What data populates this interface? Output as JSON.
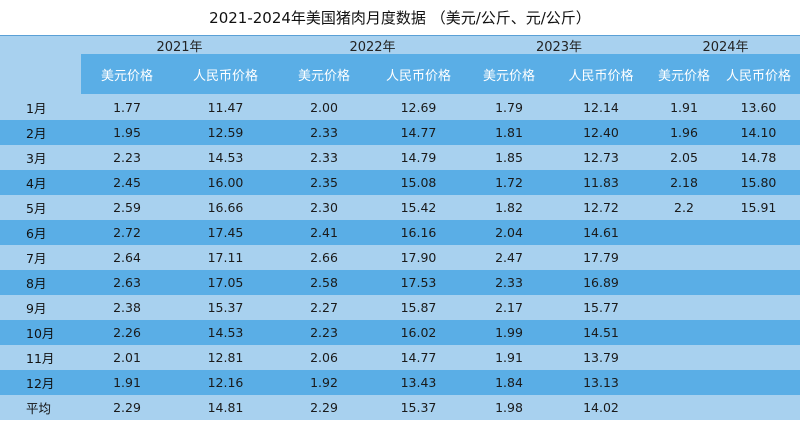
{
  "title": "2021-2024年美国猪肉月度数据 （美元/公斤、元/公斤）",
  "years": [
    "2021年",
    "2022年",
    "2023年",
    "2024年"
  ],
  "column_labels": [
    "美元价格",
    "人民币价格",
    "美元价格",
    "人民币价格",
    "美元价格",
    "人民币价格",
    "美元价格",
    "人民币价格"
  ],
  "rows": [
    {
      "label": "1月",
      "values": [
        "1.77",
        "11.47",
        "2.00",
        "12.69",
        "1.79",
        "12.14",
        "1.91",
        "13.60"
      ]
    },
    {
      "label": "2月",
      "values": [
        "1.95",
        "12.59",
        "2.33",
        "14.77",
        "1.81",
        "12.40",
        "1.96",
        "14.10"
      ]
    },
    {
      "label": "3月",
      "values": [
        "2.23",
        "14.53",
        "2.33",
        "14.79",
        "1.85",
        "12.73",
        "2.05",
        "14.78"
      ]
    },
    {
      "label": "4月",
      "values": [
        "2.45",
        "16.00",
        "2.35",
        "15.08",
        "1.72",
        "11.83",
        "2.18",
        "15.80"
      ]
    },
    {
      "label": "5月",
      "values": [
        "2.59",
        "16.66",
        "2.30",
        "15.42",
        "1.82",
        "12.72",
        "2.2",
        "15.91"
      ]
    },
    {
      "label": "6月",
      "values": [
        "2.72",
        "17.45",
        "2.41",
        "16.16",
        "2.04",
        "14.61",
        "",
        ""
      ]
    },
    {
      "label": "7月",
      "values": [
        "2.64",
        "17.11",
        "2.66",
        "17.90",
        "2.47",
        "17.79",
        "",
        ""
      ]
    },
    {
      "label": "8月",
      "values": [
        "2.63",
        "17.05",
        "2.58",
        "17.53",
        "2.33",
        "16.89",
        "",
        ""
      ]
    },
    {
      "label": "9月",
      "values": [
        "2.38",
        "15.37",
        "2.27",
        "15.87",
        "2.17",
        "15.77",
        "",
        ""
      ]
    },
    {
      "label": "10月",
      "values": [
        "2.26",
        "14.53",
        "2.23",
        "16.02",
        "1.99",
        "14.51",
        "",
        ""
      ]
    },
    {
      "label": "11月",
      "values": [
        "2.01",
        "12.81",
        "2.06",
        "14.77",
        "1.91",
        "13.79",
        "",
        ""
      ]
    },
    {
      "label": "12月",
      "values": [
        "1.91",
        "12.16",
        "1.92",
        "13.43",
        "1.84",
        "13.13",
        "",
        ""
      ]
    },
    {
      "label": "平均",
      "values": [
        "2.29",
        "14.81",
        "2.29",
        "15.37",
        "1.98",
        "14.02",
        "",
        ""
      ]
    }
  ],
  "colors": {
    "light_band": "#a8d1ef",
    "dark_band": "#5aaee6",
    "title_rule": "#5aa0d6"
  }
}
